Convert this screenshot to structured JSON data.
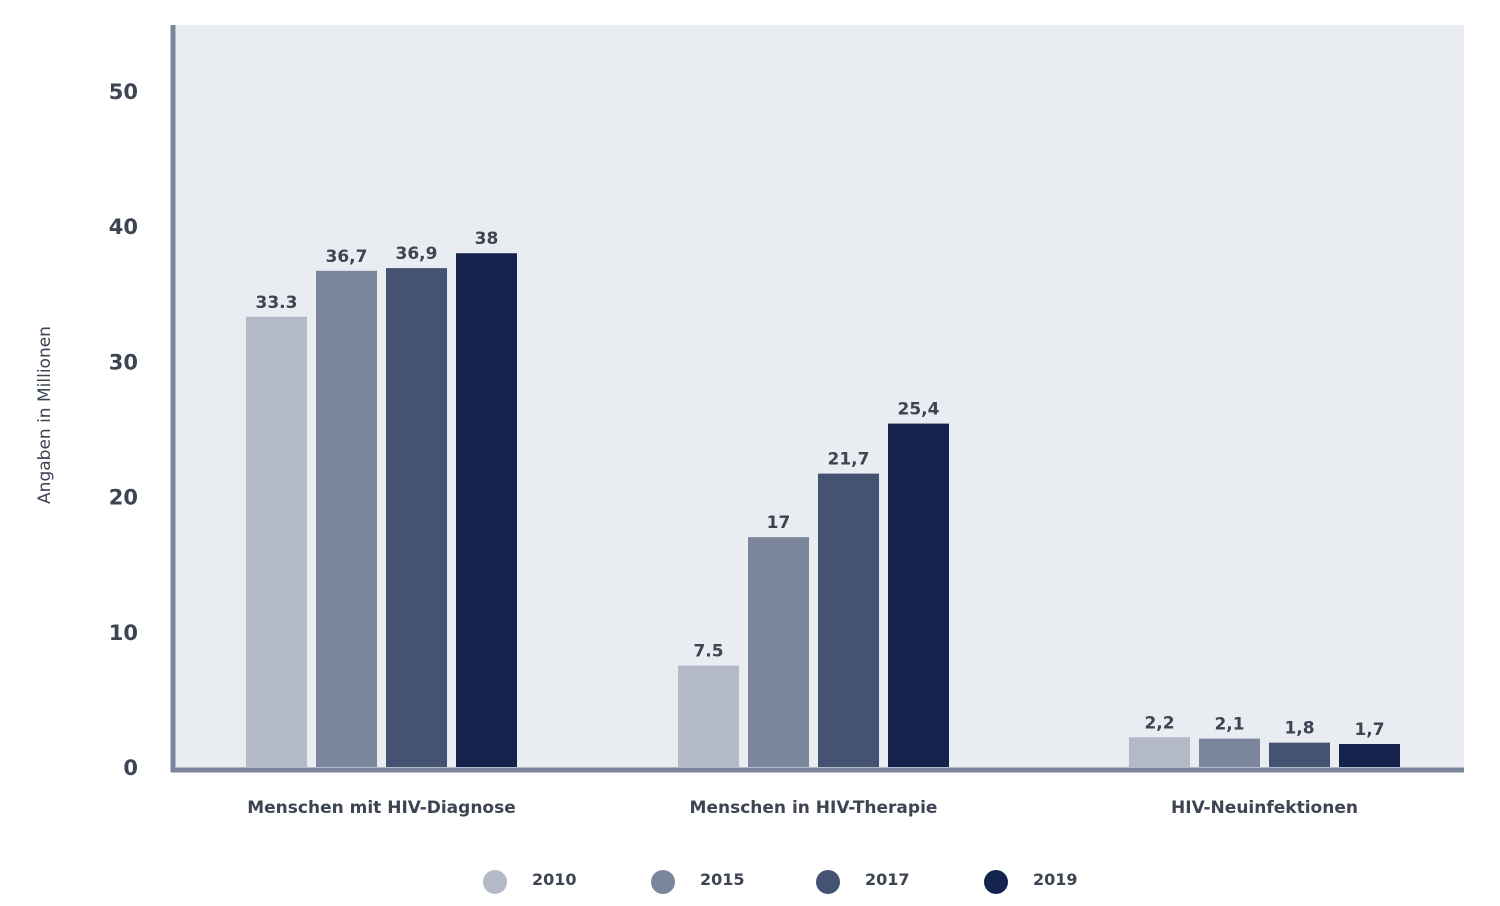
{
  "chart_data": {
    "type": "bar",
    "ylabel": "Angaben in Millionen",
    "xlabel": "",
    "ylim": [
      0,
      55
    ],
    "yticks": [
      0,
      10,
      20,
      30,
      40,
      50
    ],
    "ytick_labels": [
      "0",
      "10",
      "20",
      "30",
      "40",
      "50"
    ],
    "categories": [
      "Menschen mit HIV-Diagnose",
      "Menschen in HIV-Therapie",
      "HIV-Neuinfektionen"
    ],
    "series": [
      {
        "name": "2010",
        "color": "#b3b9c6",
        "values": [
          33.3,
          7.5,
          2.2
        ],
        "labels": [
          "33.3",
          "7.5",
          "2,2"
        ]
      },
      {
        "name": "2015",
        "color": "#7b869c",
        "values": [
          36.7,
          17,
          2.1
        ],
        "labels": [
          "36,7",
          "17",
          "2,1"
        ]
      },
      {
        "name": "2017",
        "color": "#455372",
        "values": [
          36.9,
          21.7,
          1.8
        ],
        "labels": [
          "36,9",
          "21,7",
          "1,8"
        ]
      },
      {
        "name": "2019",
        "color": "#13234b",
        "values": [
          38,
          25.4,
          1.7
        ],
        "labels": [
          "38",
          "25,4",
          "1,7"
        ]
      }
    ],
    "grid": false,
    "legend_position": "bottom-center",
    "colors": {
      "plot_background": "#e9edf1",
      "axis": "#7b869c"
    }
  }
}
